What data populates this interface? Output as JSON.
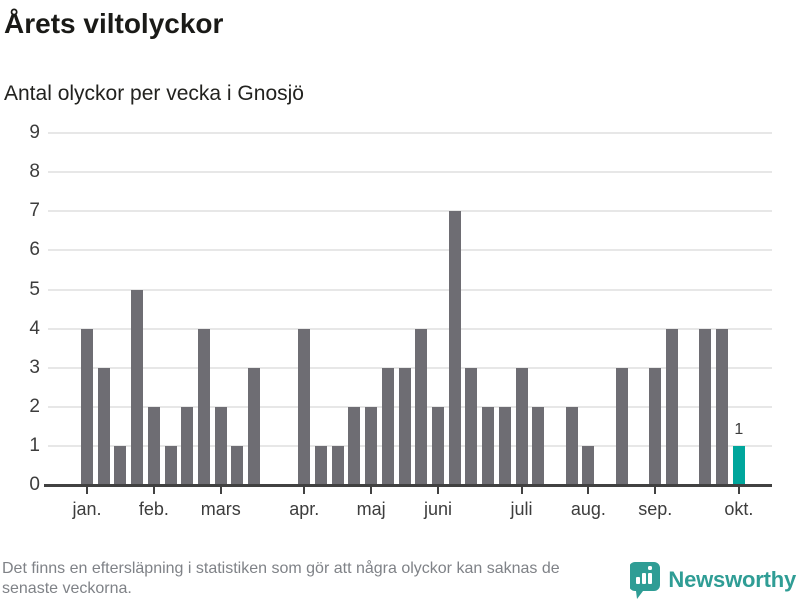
{
  "title": "Årets viltolyckor",
  "subtitle": "Antal olyckor per vecka i Gnosjö",
  "footnote": {
    "line1": "Det finns en eftersläpning i statistiken som gör att några olyckor kan saknas de",
    "line2": "senaste veckorna."
  },
  "logo": {
    "text": "Newsworthy",
    "icon": "newsworthy-bubble-barchart-icon",
    "color": "#2f9d95"
  },
  "colors": {
    "bar": "#6e6d73",
    "highlight": "#00a69c",
    "gridline": "#e7e7e7",
    "axis": "#414141",
    "tick_label": "#3d3d3d",
    "title_text": "#1a1a17",
    "footnote_text": "#7f8287"
  },
  "chart_data": {
    "type": "bar",
    "title": "Årets viltolyckor",
    "subtitle": "Antal olyckor per vecka i Gnosjö",
    "xlabel": "",
    "ylabel": "",
    "x_unit": "week number (vecka)",
    "weeks": [
      1,
      2,
      3,
      4,
      5,
      6,
      7,
      8,
      9,
      10,
      11,
      12,
      13,
      14,
      15,
      16,
      17,
      18,
      19,
      20,
      21,
      22,
      23,
      24,
      25,
      26,
      27,
      28,
      29,
      30,
      31,
      32,
      33,
      34,
      35,
      36,
      37,
      38,
      39,
      40
    ],
    "values": [
      4,
      3,
      1,
      5,
      2,
      1,
      2,
      4,
      2,
      1,
      3,
      0,
      0,
      4,
      1,
      1,
      2,
      2,
      3,
      3,
      4,
      2,
      7,
      3,
      2,
      2,
      3,
      2,
      0,
      2,
      1,
      0,
      3,
      0,
      3,
      4,
      0,
      4,
      4,
      1
    ],
    "ylim": [
      0,
      9
    ],
    "yticks": [
      0,
      1,
      2,
      3,
      4,
      5,
      6,
      7,
      8,
      9
    ],
    "grid": "horizontal",
    "legend": "none",
    "highlight": {
      "week": 40,
      "value": 1,
      "label": "1"
    },
    "month_ticks": [
      {
        "label": "jan.",
        "week": 1
      },
      {
        "label": "feb.",
        "week": 5
      },
      {
        "label": "mars",
        "week": 9
      },
      {
        "label": "apr.",
        "week": 14
      },
      {
        "label": "maj",
        "week": 18
      },
      {
        "label": "juni",
        "week": 22
      },
      {
        "label": "juli",
        "week": 27
      },
      {
        "label": "aug.",
        "week": 31
      },
      {
        "label": "sep.",
        "week": 35
      },
      {
        "label": "okt.",
        "week": 40
      }
    ]
  }
}
